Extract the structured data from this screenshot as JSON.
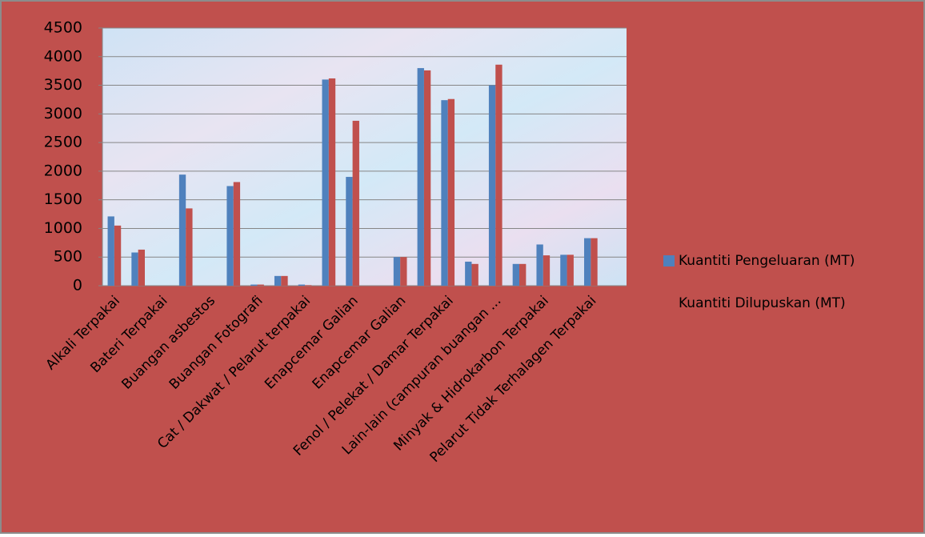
{
  "chart_data": {
    "type": "bar",
    "categories": [
      "Alkali Terpakai",
      null,
      "Bateri Terpakai",
      null,
      "Buangan asbestos",
      null,
      "Buangan Fotografi",
      null,
      "Cat / Dakwat / Pelarut terpakai",
      null,
      "Enapcemar Galian",
      null,
      "Enapcemar Galian",
      null,
      "Fenol / Pelekat / Damar Terpakai",
      null,
      "Lain-lain (campuran buangan ...",
      null,
      "Minyak & Hidrokarbon Terpakai",
      null,
      "Pelarut Tidak Terhalagen Terpakai",
      null
    ],
    "series": [
      {
        "name": "Kuantiti Pengeluaran (MT)",
        "color": "#4f81bd",
        "values": [
          1210,
          580,
          0,
          1940,
          0,
          1740,
          20,
          170,
          20,
          3600,
          1900,
          0,
          500,
          3800,
          3240,
          420,
          3500,
          380,
          720,
          540,
          830,
          0
        ]
      },
      {
        "name": "Kuantiti Dilupuskan (MT)",
        "color": "#c0504d",
        "values": [
          1050,
          630,
          0,
          1350,
          0,
          1810,
          20,
          170,
          10,
          3620,
          2880,
          0,
          500,
          3760,
          3260,
          380,
          3860,
          380,
          530,
          540,
          830,
          0
        ]
      }
    ],
    "ylim": [
      0,
      4500
    ],
    "yticks": [
      0,
      500,
      1000,
      1500,
      2000,
      2500,
      3000,
      3500,
      4000,
      4500
    ],
    "grid": true,
    "legend": "right"
  }
}
